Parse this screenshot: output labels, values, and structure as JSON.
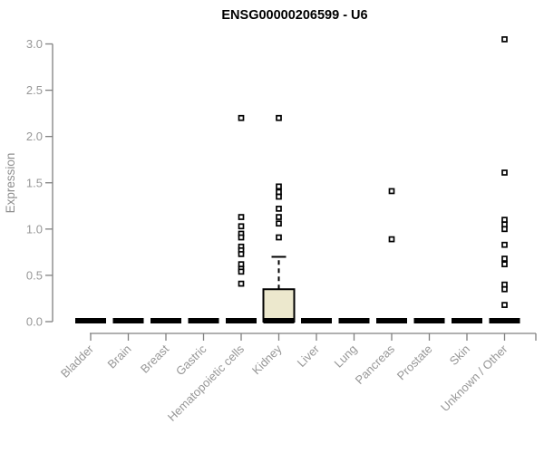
{
  "title": "ENSG00000206599 - U6",
  "colors": {
    "box_fill": "#ece8cd",
    "box_stroke": "#000000",
    "median": "#000000",
    "outlier_stroke": "#000000",
    "outlier_fill": "#ffffff",
    "axis": "#808080",
    "labels": "#979797",
    "title": "#000000"
  },
  "chart_data": {
    "type": "boxplot",
    "title": "ENSG00000206599 - U6",
    "xlabel": "",
    "ylabel": "Expression",
    "ylim": [
      0.0,
      3.0
    ],
    "yticks": [
      0.0,
      0.5,
      1.0,
      1.5,
      2.0,
      2.5,
      3.0
    ],
    "grid": false,
    "legend": null,
    "categories": [
      "Bladder",
      "Brain",
      "Breast",
      "Gastric",
      "Hematopoietic cells",
      "Kidney",
      "Liver",
      "Lung",
      "Pancreas",
      "Prostate",
      "Skin",
      "Unknown / Other"
    ],
    "boxes": [
      {
        "category": "Bladder",
        "median": 0,
        "q1": 0,
        "q3": 0,
        "whisker_low": 0,
        "whisker_high": 0,
        "outliers": []
      },
      {
        "category": "Brain",
        "median": 0,
        "q1": 0,
        "q3": 0,
        "whisker_low": 0,
        "whisker_high": 0,
        "outliers": []
      },
      {
        "category": "Breast",
        "median": 0,
        "q1": 0,
        "q3": 0,
        "whisker_low": 0,
        "whisker_high": 0,
        "outliers": []
      },
      {
        "category": "Gastric",
        "median": 0,
        "q1": 0,
        "q3": 0,
        "whisker_low": 0,
        "whisker_high": 0,
        "outliers": []
      },
      {
        "category": "Hematopoietic cells",
        "median": 0,
        "q1": 0,
        "q3": 0,
        "whisker_low": 0,
        "whisker_high": 0,
        "outliers": [
          2.2,
          1.13,
          1.03,
          0.95,
          0.91,
          0.81,
          0.77,
          0.73,
          0.62,
          0.57,
          0.54,
          0.41
        ]
      },
      {
        "category": "Kidney",
        "median": 0,
        "q1": 0,
        "q3": 0.35,
        "whisker_low": 0,
        "whisker_high": 0.7,
        "outliers": [
          2.2,
          1.46,
          1.4,
          1.35,
          1.22,
          1.13,
          1.06,
          0.91
        ]
      },
      {
        "category": "Liver",
        "median": 0,
        "q1": 0,
        "q3": 0,
        "whisker_low": 0,
        "whisker_high": 0,
        "outliers": []
      },
      {
        "category": "Lung",
        "median": 0,
        "q1": 0,
        "q3": 0,
        "whisker_low": 0,
        "whisker_high": 0,
        "outliers": []
      },
      {
        "category": "Pancreas",
        "median": 0,
        "q1": 0,
        "q3": 0,
        "whisker_low": 0,
        "whisker_high": 0,
        "outliers": [
          1.41,
          0.89
        ]
      },
      {
        "category": "Prostate",
        "median": 0,
        "q1": 0,
        "q3": 0,
        "whisker_low": 0,
        "whisker_high": 0,
        "outliers": []
      },
      {
        "category": "Skin",
        "median": 0,
        "q1": 0,
        "q3": 0,
        "whisker_low": 0,
        "whisker_high": 0,
        "outliers": []
      },
      {
        "category": "Unknown / Other",
        "median": 0,
        "q1": 0,
        "q3": 0,
        "whisker_low": 0,
        "whisker_high": 0,
        "outliers": [
          3.05,
          1.61,
          1.1,
          1.05,
          1.0,
          0.83,
          0.68,
          0.62,
          0.4,
          0.35,
          0.18
        ]
      }
    ]
  }
}
